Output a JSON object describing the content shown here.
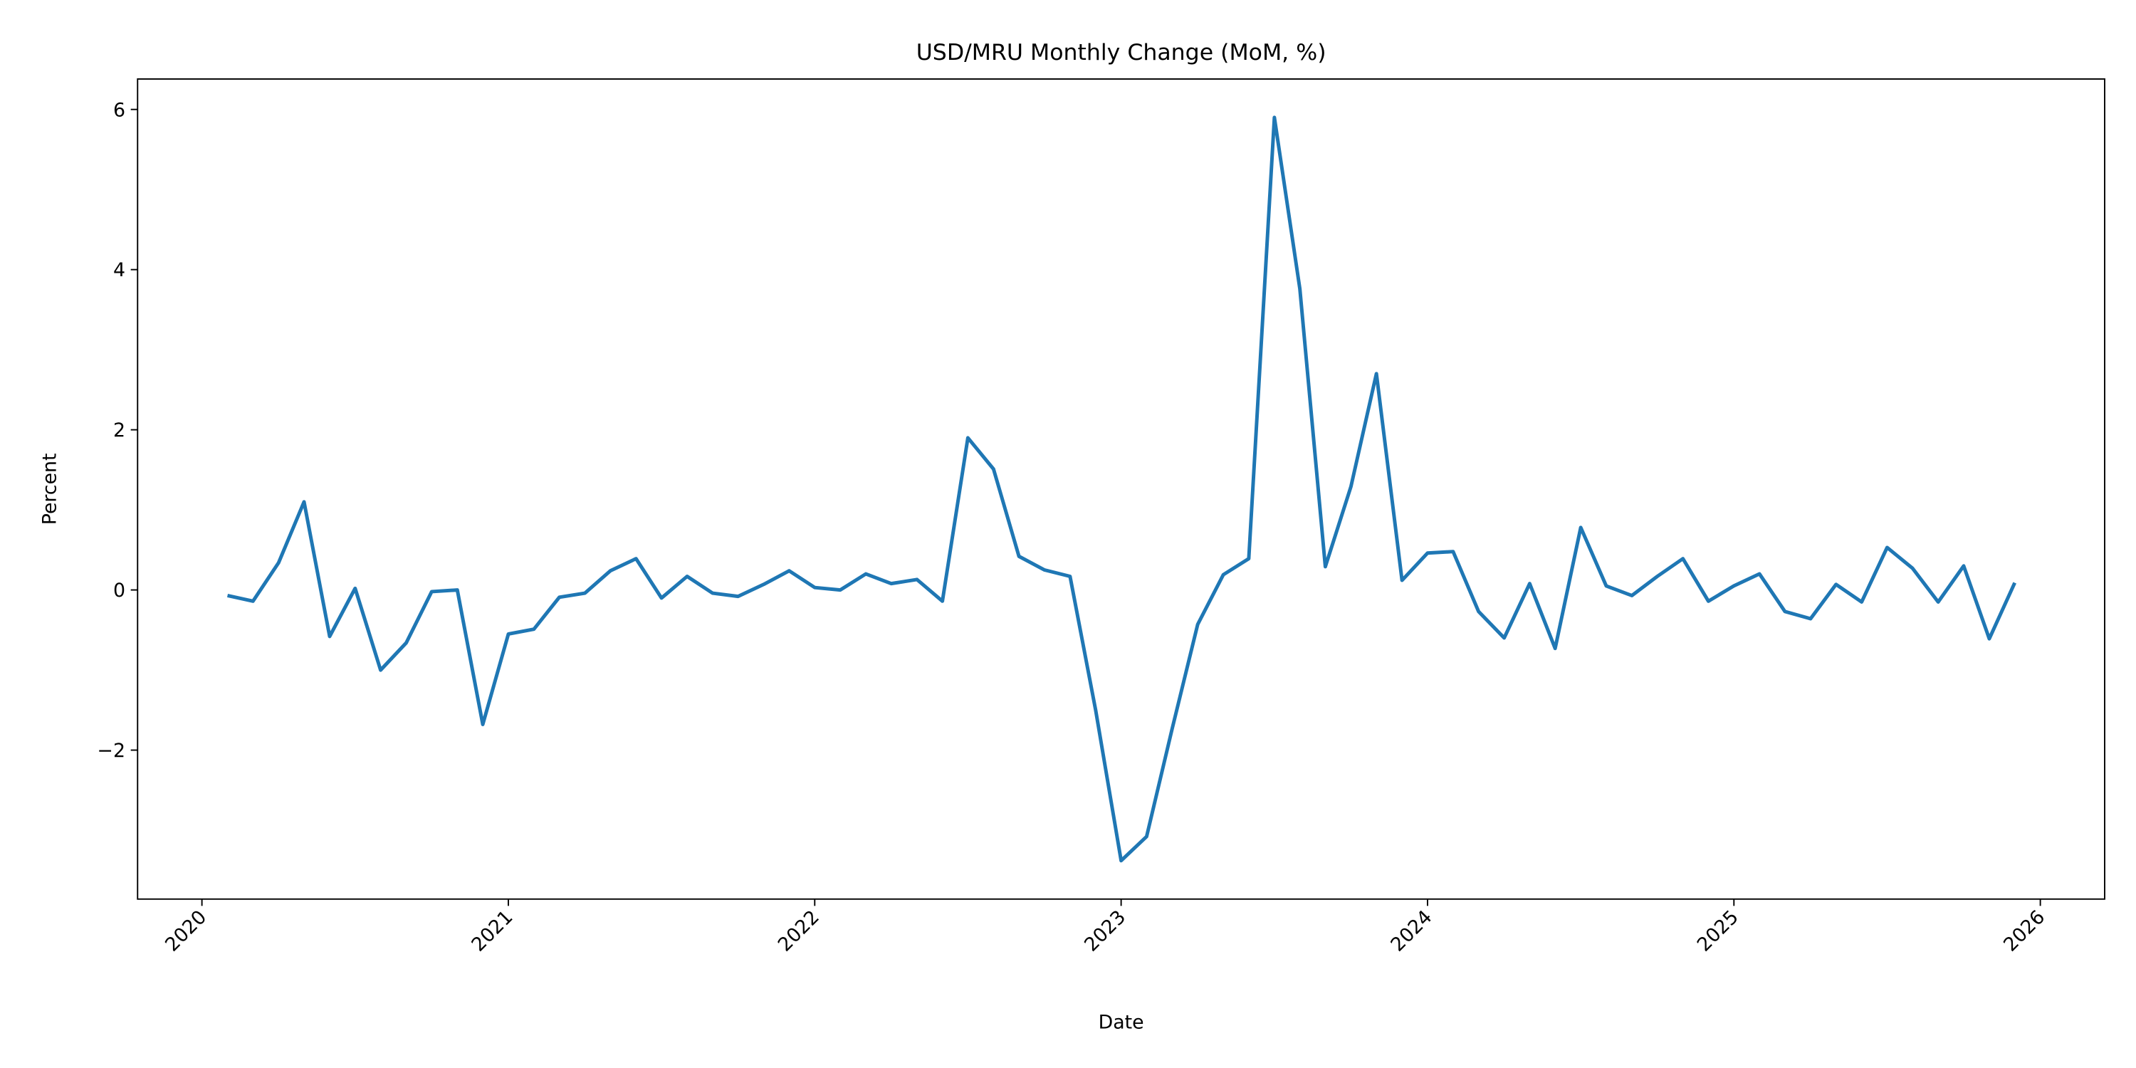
{
  "chart_data": {
    "type": "line",
    "title": "USD/MRU Monthly Change (MoM, %)",
    "xlabel": "Date",
    "ylabel": "Percent",
    "xlim": [
      2019.79,
      2026.21
    ],
    "ylim": [
      -3.86,
      6.38
    ],
    "x_ticks": [
      2020,
      2021,
      2022,
      2023,
      2024,
      2025,
      2026
    ],
    "x_tick_labels": [
      "2020",
      "2021",
      "2022",
      "2023",
      "2024",
      "2025",
      "2026"
    ],
    "y_ticks": [
      -2,
      0,
      2,
      4,
      6
    ],
    "y_tick_labels": [
      "−2",
      "0",
      "2",
      "4",
      "6"
    ],
    "grid": false,
    "series": [
      {
        "name": "USD/MRU MoM %",
        "color": "#1f77b4",
        "start": "2020-01",
        "frequency": "monthly",
        "values": [
          -0.07,
          -0.14,
          0.34,
          1.1,
          -0.58,
          0.02,
          -1.0,
          -0.66,
          -0.02,
          0.0,
          -1.68,
          -0.55,
          -0.49,
          -0.09,
          -0.04,
          0.24,
          0.39,
          -0.1,
          0.17,
          -0.04,
          -0.08,
          0.07,
          0.24,
          0.03,
          0.0,
          0.2,
          0.08,
          0.13,
          -0.14,
          1.9,
          1.51,
          0.42,
          0.25,
          0.17,
          -1.5,
          -3.38,
          -3.08,
          -1.73,
          -0.43,
          0.19,
          0.39,
          5.9,
          3.76,
          0.29,
          1.29,
          2.7,
          0.12,
          0.46,
          0.48,
          -0.27,
          -0.6,
          0.08,
          -0.73,
          0.78,
          0.05,
          -0.07,
          0.17,
          0.39,
          -0.14,
          0.05,
          0.2,
          -0.27,
          -0.36,
          0.07,
          -0.15,
          0.53,
          0.27,
          -0.15,
          0.3,
          -0.61,
          0.09
        ]
      }
    ]
  }
}
